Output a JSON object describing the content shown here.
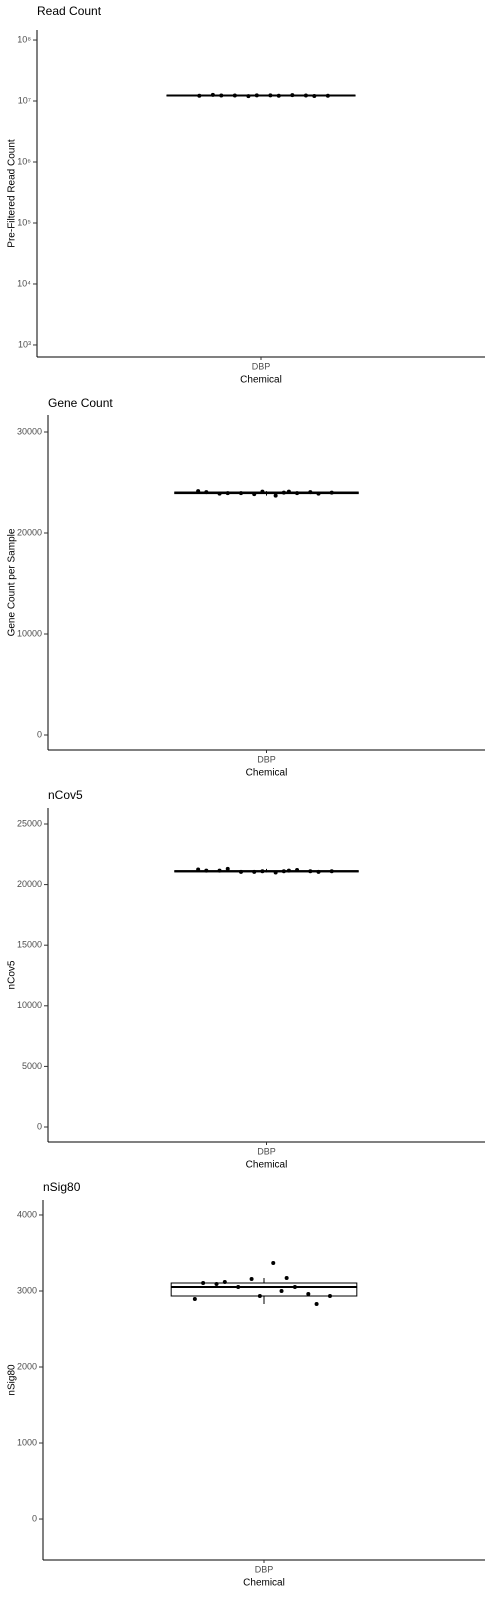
{
  "chart_data": [
    {
      "type": "box",
      "title": "Read Count",
      "ylabel": "Pre-Filtered Read Count",
      "xlabel": "Chemical",
      "categories": [
        "DBP"
      ],
      "log": true,
      "box": {
        "min": 12000000,
        "q1": 12100000,
        "median": 12300000,
        "q3": 12500000,
        "max": 12600000
      },
      "points": [
        12200000,
        12300000,
        12100000,
        12400000,
        12200000,
        12500000,
        12300000,
        12200000,
        12400000,
        12600000,
        12300000,
        12000000
      ],
      "ylim": [
        635,
        146000000
      ],
      "yticks": [
        {
          "value": 1000,
          "label": "10³"
        },
        {
          "value": 10000,
          "label": "10⁴"
        },
        {
          "value": 100000,
          "label": "10⁵"
        },
        {
          "value": 1000000,
          "label": "10⁶"
        },
        {
          "value": 10000000,
          "label": "10⁷"
        },
        {
          "value": 100000000,
          "label": "10⁸"
        }
      ]
    },
    {
      "type": "box",
      "title": "Gene Count",
      "ylabel": "Gene Count per Sample",
      "xlabel": "Chemical",
      "categories": [
        "DBP"
      ],
      "box": {
        "min": 23700,
        "q1": 23900,
        "median": 24000,
        "q3": 24050,
        "max": 24150
      },
      "points": [
        24000,
        23950,
        23900,
        24100,
        24050,
        23950,
        23950,
        24000,
        23700,
        23900,
        24050,
        23850,
        24150,
        24100
      ],
      "ylim": [
        -1485,
        31683
      ],
      "yticks": [
        0,
        10000,
        20000,
        30000
      ]
    },
    {
      "type": "box",
      "title": "nCov5",
      "ylabel": "nCov5",
      "xlabel": "Chemical",
      "categories": [
        "DBP"
      ],
      "box": {
        "min": 21000,
        "q1": 21050,
        "median": 21100,
        "q3": 21150,
        "max": 21300
      },
      "points": [
        21100,
        21300,
        21050,
        21100,
        21150,
        21200,
        21050,
        21100,
        21000,
        21150,
        21100,
        21050,
        21250,
        21150
      ],
      "ylim": [
        -1238,
        26320
      ],
      "yticks": [
        0,
        5000,
        10000,
        15000,
        20000,
        25000
      ]
    },
    {
      "type": "box",
      "title": "nSig80",
      "ylabel": "nSig80",
      "xlabel": "Chemical",
      "categories": [
        "DBP"
      ],
      "box": {
        "min": 2829,
        "q1": 2934,
        "median": 3053,
        "q3": 3105,
        "max": 3171
      },
      "points": [
        3000,
        3118,
        2829,
        2934,
        3105,
        3053,
        3053,
        2934,
        3368,
        3092,
        2960,
        3158,
        2895,
        3171
      ],
      "ylim": [
        -539,
        4197
      ],
      "yticks": [
        0,
        1000,
        2000,
        3000,
        4000
      ]
    }
  ]
}
